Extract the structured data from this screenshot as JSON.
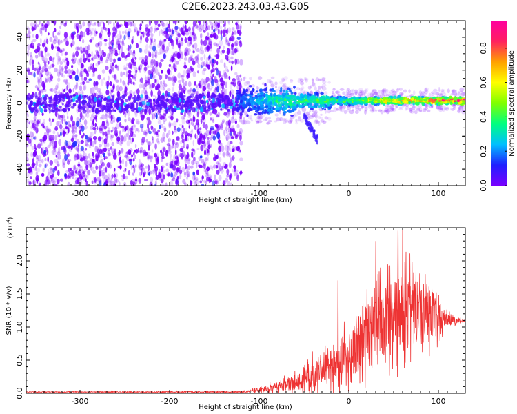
{
  "title": "C2E6.2023.243.03.43.G05",
  "colors": {
    "snr_line": "#ee3333",
    "spectrogram_base": "#7a00ff",
    "colormap": [
      "#7a00ff",
      "#2020ff",
      "#00bfff",
      "#00ff80",
      "#80ff00",
      "#ffff00",
      "#ffa000",
      "#ff2060",
      "#ff00a0"
    ]
  },
  "chart_data": [
    {
      "type": "heatmap",
      "xlabel": "Height of straight line (km)",
      "ylabel": "Frequency (Hz)",
      "xlim": [
        -360,
        130
      ],
      "ylim": [
        -50,
        50
      ],
      "xticks": [
        -300,
        -200,
        -100,
        0,
        100
      ],
      "yticks": [
        -40,
        -20,
        0,
        20,
        40
      ],
      "colorbar": {
        "label": "Normalized spectral amplitude",
        "range": [
          0,
          0.96
        ],
        "ticks": [
          "0.0",
          "0.2",
          "0.4",
          "0.6",
          "0.8"
        ],
        "tick_values": [
          0.0,
          0.2,
          0.4,
          0.6,
          0.8
        ]
      },
      "features": {
        "noise_region_x": [
          -360,
          -120
        ],
        "noise_level": 0.08,
        "signal_center_freq_hz": 1.5,
        "signal_band_halfwidth_hz": [
          6,
          3
        ],
        "signal_amplitude": [
          {
            "x": -120,
            "value": 0.2
          },
          {
            "x": -80,
            "value": 0.4
          },
          {
            "x": 0,
            "value": 0.5
          },
          {
            "x": 50,
            "value": 0.8
          },
          {
            "x": 130,
            "value": 0.95
          }
        ],
        "tail_track": [
          {
            "x": -50,
            "freq": -8
          },
          {
            "x": -35,
            "freq": -22
          }
        ]
      }
    },
    {
      "type": "line",
      "xlabel": "Height of straight line (km)",
      "ylabel": "SNR (10 * v/v)",
      "y_scale_label": "(x10",
      "y_scale_exp": "4",
      "y_scale_close": ")",
      "xlim": [
        -360,
        130
      ],
      "ylim": [
        0,
        2.5
      ],
      "xticks": [
        -300,
        -200,
        -100,
        0,
        100
      ],
      "yticks": [
        "0.0",
        "0.5",
        "1.0",
        "1.5",
        "2.0"
      ],
      "ytick_values": [
        0.0,
        0.5,
        1.0,
        1.5,
        2.0
      ],
      "series": [
        {
          "envelope": [
            {
              "x": -360,
              "mean": 0.02,
              "spread": 0.01
            },
            {
              "x": -120,
              "mean": 0.02,
              "spread": 0.015
            },
            {
              "x": -100,
              "mean": 0.05,
              "spread": 0.05
            },
            {
              "x": -60,
              "mean": 0.15,
              "spread": 0.2
            },
            {
              "x": -40,
              "mean": 0.3,
              "spread": 0.35
            },
            {
              "x": -10,
              "mean": 0.5,
              "spread": 0.5
            },
            {
              "x": 0,
              "mean": 0.6,
              "spread": 0.6
            },
            {
              "x": 30,
              "mean": 1.0,
              "spread": 0.9
            },
            {
              "x": 60,
              "mean": 1.2,
              "spread": 1.0
            },
            {
              "x": 90,
              "mean": 1.2,
              "spread": 0.7
            },
            {
              "x": 110,
              "mean": 1.1,
              "spread": 0.15
            },
            {
              "x": 130,
              "mean": 1.1,
              "spread": 0.02
            }
          ],
          "peaks": [
            {
              "x": -12,
              "value": 1.7
            },
            {
              "x": 30,
              "value": 2.3
            },
            {
              "x": 55,
              "value": 2.45
            },
            {
              "x": 60,
              "value": 2.5
            },
            {
              "x": 75,
              "value": 2.0
            }
          ]
        }
      ]
    }
  ]
}
